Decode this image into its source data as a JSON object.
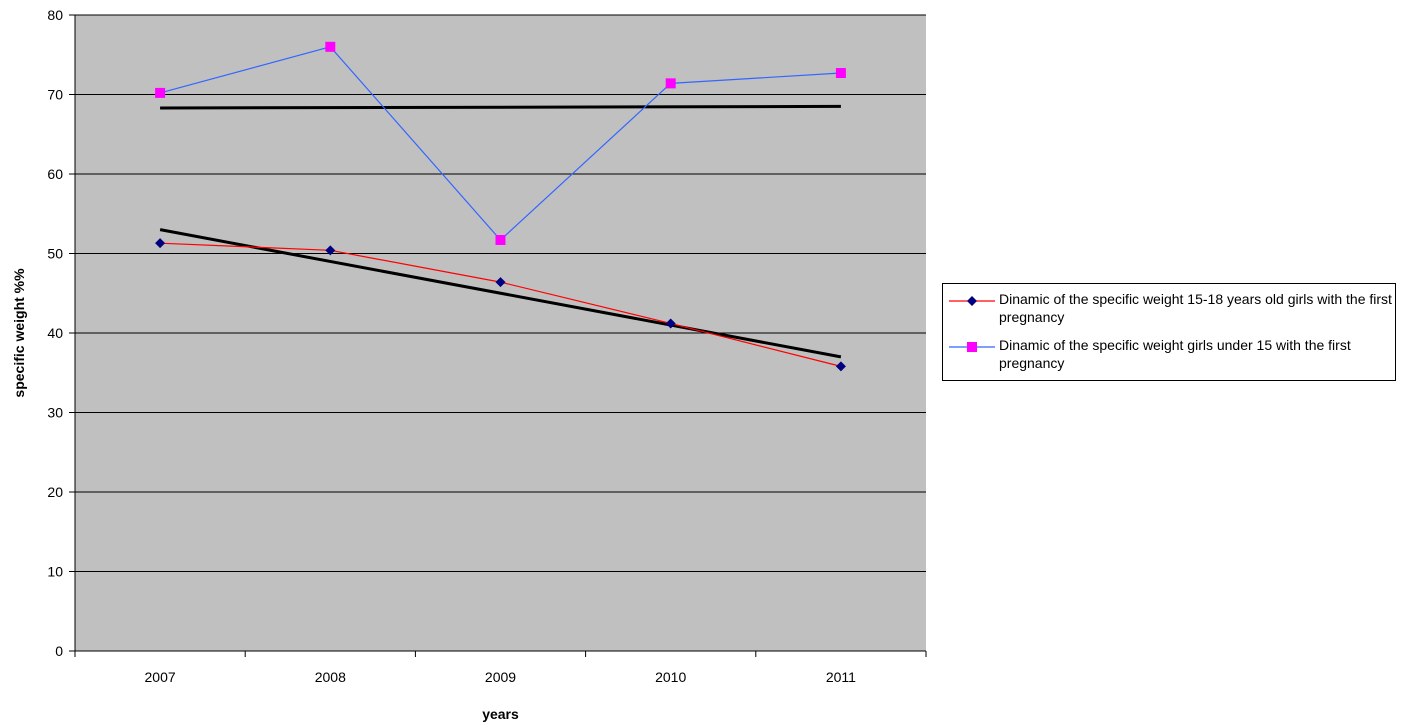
{
  "chart_data": {
    "type": "line",
    "xlabel": "years",
    "ylabel": "specific weight %%",
    "categories": [
      "2007",
      "2008",
      "2009",
      "2010",
      "2011"
    ],
    "ylim": [
      0,
      80
    ],
    "yticks": [
      0,
      10,
      20,
      30,
      40,
      50,
      60,
      70,
      80
    ],
    "grid": true,
    "plot_background": "#C0C0C0",
    "legend_position": "right",
    "series": [
      {
        "name": "Dinamic of the specific weight 15-18 years old girls with the first pregnancy",
        "values": [
          51.3,
          50.4,
          46.4,
          41.2,
          35.8
        ],
        "line_color": "#FF0000",
        "marker": "diamond",
        "marker_color": "#000080",
        "trendline": [
          53.0,
          37.0
        ]
      },
      {
        "name": "Dinamic of the specific weight  girls under 15 with the first pregnancy",
        "values": [
          70.2,
          76.0,
          51.7,
          71.4,
          72.7
        ],
        "line_color": "#3366FF",
        "marker": "square",
        "marker_color": "#FF00FF",
        "trendline": [
          68.3,
          68.5
        ]
      }
    ],
    "trendline_color": "#000000"
  }
}
